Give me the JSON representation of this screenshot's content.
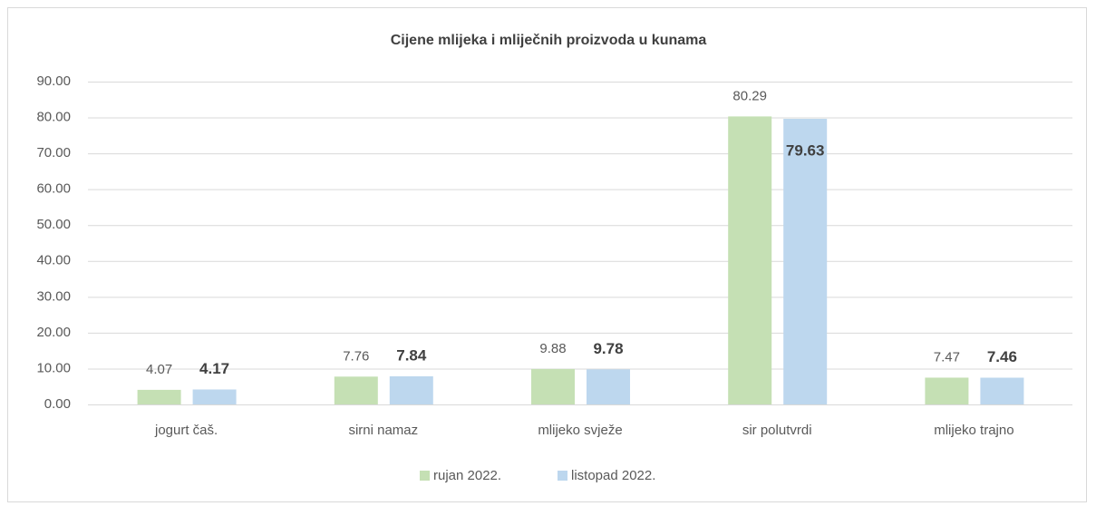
{
  "chart_data": {
    "type": "bar",
    "title": "Cijene mlijeka i mliječnih proizvoda u kunama",
    "categories": [
      "jogurt čaš.",
      "sirni namaz",
      "mlijeko svježe",
      "sir polutvrdi",
      "mlijeko trajno"
    ],
    "series": [
      {
        "name": "rujan 2022.",
        "color": "#c5e0b4",
        "values": [
          4.07,
          7.76,
          9.88,
          80.29,
          7.47
        ]
      },
      {
        "name": "listopad 2022.",
        "color": "#bdd7ee",
        "values": [
          4.17,
          7.84,
          9.78,
          79.63,
          7.46
        ]
      }
    ],
    "ylim": [
      0,
      90
    ],
    "yticks": [
      {
        "value": 0,
        "label": "0.00"
      },
      {
        "value": 10,
        "label": "10.00"
      },
      {
        "value": 20,
        "label": "20.00"
      },
      {
        "value": 30,
        "label": "30.00"
      },
      {
        "value": 40,
        "label": "40.00"
      },
      {
        "value": 50,
        "label": "50.00"
      },
      {
        "value": 60,
        "label": "60.00"
      },
      {
        "value": 70,
        "label": "70.00"
      },
      {
        "value": 80,
        "label": "80.00"
      },
      {
        "value": 90,
        "label": "90.00"
      }
    ],
    "grid": true,
    "legend": "bottom"
  }
}
